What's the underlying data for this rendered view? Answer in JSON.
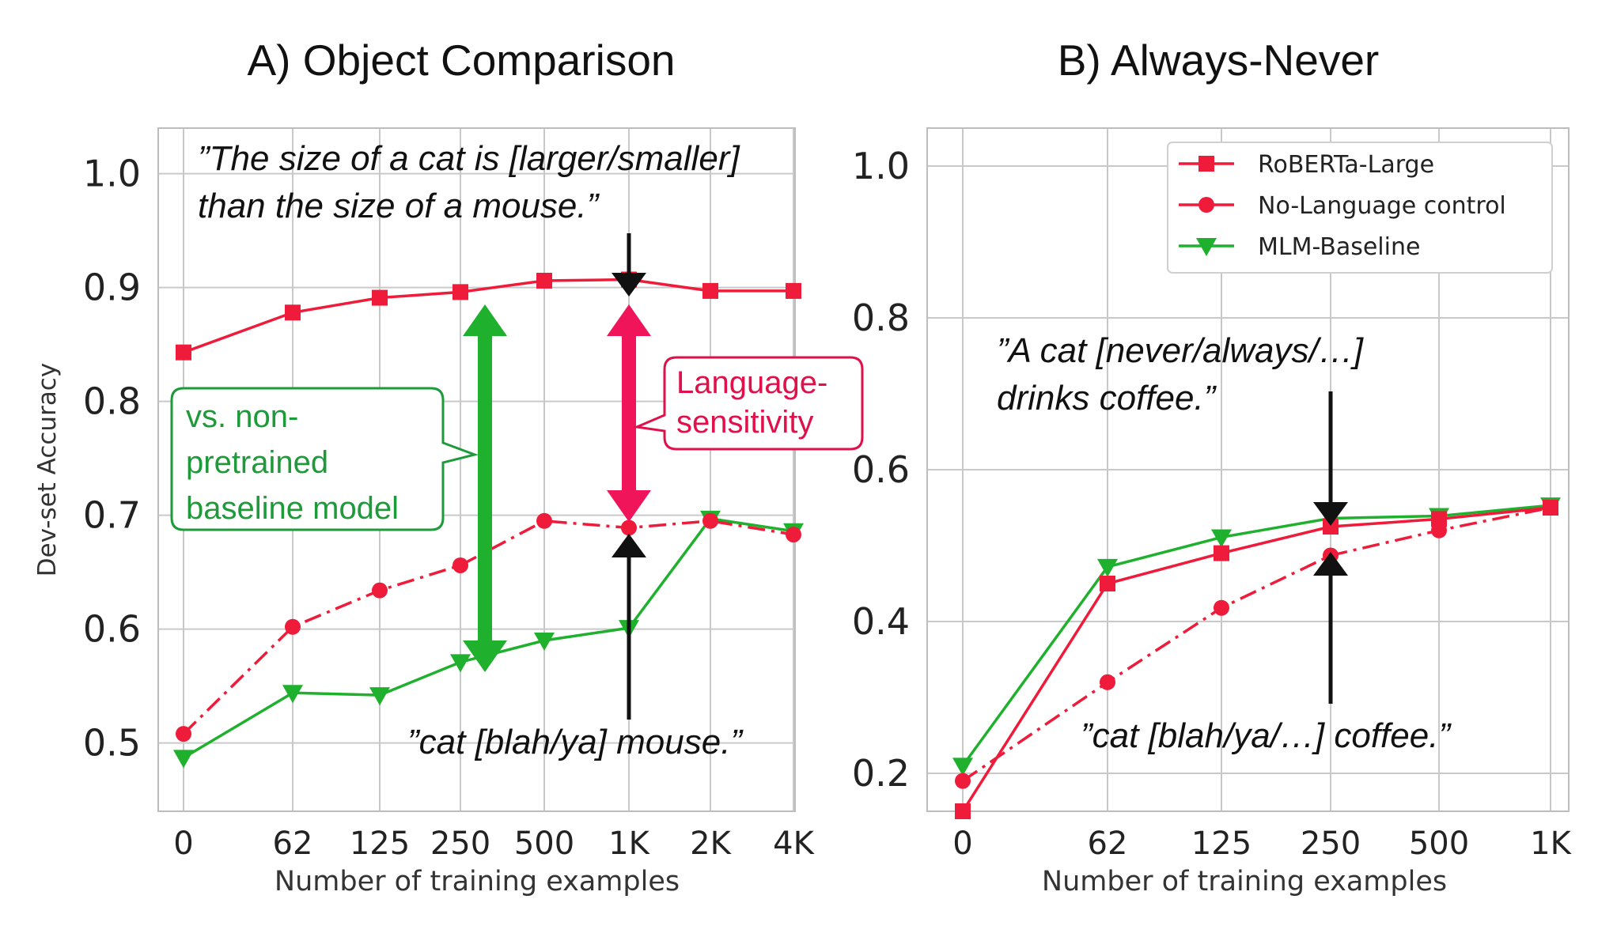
{
  "colors": {
    "red": "#ee1c3a",
    "green": "#1fb02e",
    "pink": "#f0145a",
    "callout_green": "#1f9a3a",
    "callout_red": "#e0114a"
  },
  "chart_data": [
    {
      "type": "line",
      "title": "A) Object Comparison",
      "xlabel": "Number of training examples",
      "ylabel": "Dev-set Accuracy",
      "categories": [
        "0",
        "62",
        "125",
        "250",
        "500",
        "1K",
        "2K",
        "4K"
      ],
      "ylim": [
        0.44,
        1.04
      ],
      "yticks": [
        "0.5",
        "0.6",
        "0.7",
        "0.8",
        "0.9",
        "1.0"
      ],
      "grid": true,
      "series": [
        {
          "name": "RoBERTa-Large",
          "style": "solid",
          "marker": "square",
          "values": [
            0.843,
            0.878,
            0.891,
            0.896,
            0.906,
            0.907,
            0.897,
            0.897
          ]
        },
        {
          "name": "No-Language control",
          "style": "dashdot",
          "marker": "circle",
          "values": [
            0.508,
            0.602,
            0.634,
            0.656,
            0.695,
            0.689,
            0.695,
            0.683
          ]
        },
        {
          "name": "MLM-Baseline",
          "style": "solid",
          "marker": "triangle-down",
          "values": [
            0.487,
            0.544,
            0.542,
            0.571,
            0.59,
            0.601,
            0.697,
            0.686
          ]
        }
      ],
      "annotations": {
        "top_quote_line1": "”The size of a cat is [larger/smaller]",
        "top_quote_line2": "than the size of a mouse.”",
        "bottom_quote": "”cat [blah/ya] mouse.”",
        "green_callout": [
          "vs. non-",
          "pretrained",
          "baseline model"
        ],
        "red_callout": [
          "Language-",
          "sensitivity"
        ]
      }
    },
    {
      "type": "line",
      "title": "B) Always-Never",
      "xlabel": "Number of training examples",
      "ylabel": "",
      "categories": [
        "0",
        "62",
        "125",
        "250",
        "500",
        "1K"
      ],
      "ylim": [
        0.15,
        1.05
      ],
      "yticks": [
        "0.2",
        "0.4",
        "0.6",
        "0.8",
        "1.0"
      ],
      "grid": true,
      "legend_position": "top-right",
      "series": [
        {
          "name": "RoBERTa-Large",
          "style": "solid",
          "marker": "square",
          "values": [
            0.15,
            0.45,
            0.49,
            0.525,
            0.535,
            0.55
          ]
        },
        {
          "name": "No-Language control",
          "style": "dashdot",
          "marker": "circle",
          "values": [
            0.19,
            0.32,
            0.418,
            0.487,
            0.52,
            0.55
          ]
        },
        {
          "name": "MLM-Baseline",
          "style": "solid",
          "marker": "triangle-down",
          "values": [
            0.21,
            0.472,
            0.511,
            0.536,
            0.539,
            0.553
          ]
        }
      ],
      "annotations": {
        "top_quote_line1": "”A cat [never/always/…]",
        "top_quote_line2": "drinks coffee.”",
        "bottom_quote": "”cat [blah/ya/…] coffee.”"
      }
    }
  ]
}
